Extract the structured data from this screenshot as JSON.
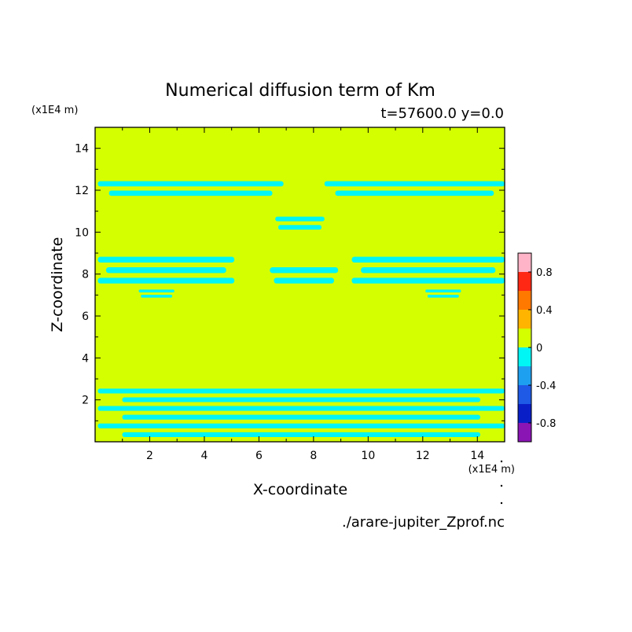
{
  "chart_data": {
    "type": "heatmap",
    "title": "Numerical diffusion term of Km",
    "subtitle": "t=57600.0 y=0.0",
    "xlabel": "X-coordinate",
    "ylabel": "Z-coordinate",
    "x_scale_label": "(x1E4 m)",
    "y_scale_label": "(x1E4 m)",
    "source_file": "./arare-jupiter_Zprof.nc",
    "xlim": [
      0,
      15
    ],
    "ylim": [
      0,
      15
    ],
    "x_ticks": [
      2,
      4,
      6,
      8,
      10,
      12,
      14
    ],
    "y_ticks": [
      2,
      4,
      6,
      8,
      10,
      12,
      14
    ],
    "colorbar": {
      "levels": [
        -1.0,
        -0.8,
        -0.6,
        -0.4,
        -0.2,
        0.0,
        0.2,
        0.4,
        0.6,
        0.8,
        1.0
      ],
      "tick_labels": [
        "-0.8",
        "-0.4",
        "0",
        "0.4",
        "0.8"
      ],
      "tick_values": [
        -0.8,
        -0.4,
        0,
        0.4,
        0.8
      ],
      "colors": [
        "#8a14b4",
        "#0a1ec8",
        "#1e5ae6",
        "#1ea0f0",
        "#00f5f5",
        "#d4ff00",
        "#ffb400",
        "#ff7800",
        "#ff2814",
        "#ffb4c8"
      ]
    },
    "background_value_range": [
      0.0,
      0.2
    ],
    "negative_patches_value_range": [
      -0.2,
      0.0
    ],
    "negative_patches": [
      {
        "x": [
          0.1,
          6.9
        ],
        "z": [
          11.6,
          12.5
        ],
        "note": "upper-left band"
      },
      {
        "x": [
          8.4,
          15.0
        ],
        "z": [
          11.6,
          12.5
        ],
        "note": "upper-right band"
      },
      {
        "x": [
          6.6,
          8.4
        ],
        "z": [
          10.0,
          10.8
        ],
        "note": "upper-center lens"
      },
      {
        "x": [
          0.1,
          5.1
        ],
        "z": [
          7.4,
          8.9
        ],
        "note": "mid-left band"
      },
      {
        "x": [
          9.4,
          15.0
        ],
        "z": [
          7.4,
          8.9
        ],
        "note": "mid-right band"
      },
      {
        "x": [
          6.4,
          8.9
        ],
        "z": [
          7.4,
          8.4
        ],
        "note": "mid-center lens"
      },
      {
        "x": [
          1.6,
          2.9
        ],
        "z": [
          6.8,
          7.3
        ],
        "note": "small left lens"
      },
      {
        "x": [
          12.1,
          13.4
        ],
        "z": [
          6.8,
          7.3
        ],
        "note": "small right lens"
      },
      {
        "x": [
          0.1,
          15.0
        ],
        "z": [
          0.1,
          2.6
        ],
        "note": "bottom band"
      }
    ]
  }
}
